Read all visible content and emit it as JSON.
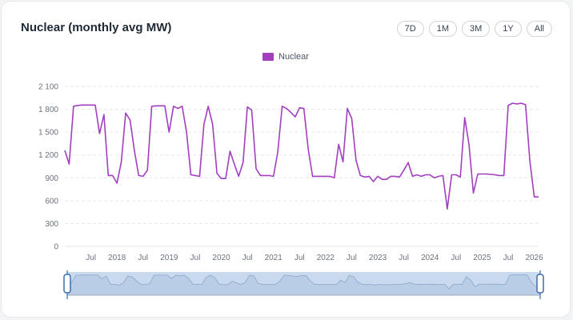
{
  "card": {
    "title": "Nuclear (monthly avg MW)"
  },
  "range_buttons": [
    "7D",
    "1M",
    "3M",
    "1Y",
    "All"
  ],
  "colors": {
    "series": "#a23fbf",
    "navigator_fill": "#c9daef",
    "navigator_line": "#8aa6c8",
    "handle": "#3b6da8"
  },
  "chart_data": {
    "type": "line",
    "title": "Nuclear (monthly avg MW)",
    "xlabel": "",
    "ylabel": "",
    "ylim": [
      0,
      2100
    ],
    "yticks": [
      0,
      300,
      600,
      900,
      1200,
      1500,
      1800,
      2100
    ],
    "ytick_labels": [
      "0",
      "300",
      "600",
      "900",
      "1 200",
      "1 500",
      "1 800",
      "2 100"
    ],
    "xtick_labels": [
      {
        "t": 2017.5,
        "label": "Jul"
      },
      {
        "t": 2018.0,
        "label": "2018"
      },
      {
        "t": 2018.5,
        "label": "Jul"
      },
      {
        "t": 2019.0,
        "label": "2019"
      },
      {
        "t": 2019.5,
        "label": "Jul"
      },
      {
        "t": 2020.0,
        "label": "2020"
      },
      {
        "t": 2020.5,
        "label": "Jul"
      },
      {
        "t": 2021.0,
        "label": "2021"
      },
      {
        "t": 2021.5,
        "label": "Jul"
      },
      {
        "t": 2022.0,
        "label": "2022"
      },
      {
        "t": 2022.5,
        "label": "Jul"
      },
      {
        "t": 2023.0,
        "label": "2023"
      },
      {
        "t": 2023.5,
        "label": "Jul"
      },
      {
        "t": 2024.0,
        "label": "2024"
      },
      {
        "t": 2024.5,
        "label": "Jul"
      },
      {
        "t": 2025.0,
        "label": "2025"
      },
      {
        "t": 2025.5,
        "label": "Jul"
      },
      {
        "t": 2026.0,
        "label": "2026"
      }
    ],
    "grid": true,
    "legend_position": "top-center",
    "x_start": "2017-01",
    "series": [
      {
        "name": "Nuclear",
        "values": [
          1260,
          1080,
          1840,
          1850,
          1855,
          1855,
          1855,
          1855,
          1480,
          1730,
          930,
          930,
          830,
          1110,
          1750,
          1660,
          1260,
          930,
          920,
          1000,
          1840,
          1845,
          1845,
          1845,
          1500,
          1840,
          1810,
          1840,
          1500,
          940,
          930,
          920,
          1600,
          1840,
          1600,
          960,
          890,
          890,
          1250,
          1080,
          920,
          1100,
          1830,
          1790,
          1020,
          930,
          930,
          930,
          920,
          1240,
          1840,
          1810,
          1760,
          1700,
          1820,
          1810,
          1280,
          920,
          920,
          920,
          920,
          920,
          900,
          1340,
          1110,
          1810,
          1680,
          1130,
          930,
          910,
          920,
          850,
          920,
          880,
          880,
          920,
          920,
          910,
          1000,
          1100,
          920,
          940,
          920,
          940,
          940,
          900,
          920,
          930,
          490,
          940,
          940,
          910,
          1690,
          1330,
          700,
          950,
          950,
          950,
          945,
          940,
          930,
          930,
          1850,
          1880,
          1870,
          1880,
          1860,
          1120,
          650,
          650
        ]
      }
    ]
  }
}
